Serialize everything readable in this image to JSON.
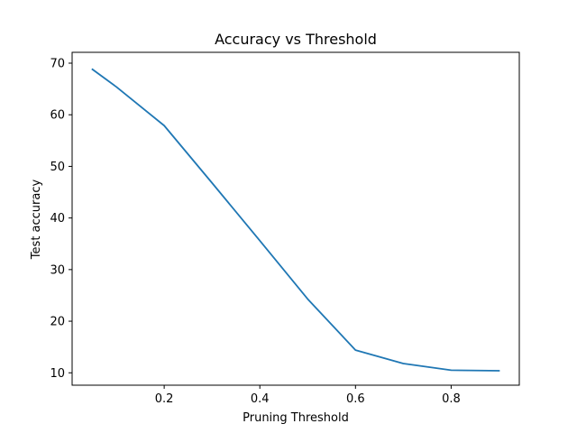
{
  "chart_data": {
    "type": "line",
    "title": "Accuracy vs Threshold",
    "xlabel": "Pruning Threshold",
    "ylabel": "Test accuracy",
    "xlim": [
      0.0075,
      0.9425
    ],
    "ylim": [
      7.6,
      72.1
    ],
    "xticks": [
      0.2,
      0.4,
      0.6,
      0.8
    ],
    "xtick_labels": [
      "0.2",
      "0.4",
      "0.6",
      "0.8"
    ],
    "yticks": [
      10,
      20,
      30,
      40,
      50,
      60,
      70
    ],
    "ytick_labels": [
      "10",
      "20",
      "30",
      "40",
      "50",
      "60",
      "70"
    ],
    "grid": false,
    "series": [
      {
        "color": "#1f77b4",
        "x": [
          0.05,
          0.1,
          0.2,
          0.3,
          0.4,
          0.5,
          0.6,
          0.7,
          0.8,
          0.9
        ],
        "y": [
          68.8,
          65.4,
          57.9,
          46.8,
          35.6,
          24.3,
          14.4,
          11.8,
          10.5,
          10.4
        ]
      }
    ]
  }
}
